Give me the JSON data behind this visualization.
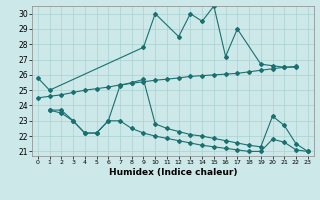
{
  "xlabel": "Humidex (Indice chaleur)",
  "bg_color": "#cce8e8",
  "grid_color": "#aad0d0",
  "line_color": "#1a7070",
  "xlim": [
    -0.5,
    23.5
  ],
  "ylim": [
    20.7,
    30.5
  ],
  "yticks": [
    21,
    22,
    23,
    24,
    25,
    26,
    27,
    28,
    29,
    30
  ],
  "xticks": [
    0,
    1,
    2,
    3,
    4,
    5,
    6,
    7,
    8,
    9,
    10,
    11,
    12,
    13,
    14,
    15,
    16,
    17,
    18,
    19,
    20,
    21,
    22,
    23
  ],
  "series": [
    {
      "x": [
        0,
        1,
        9,
        10,
        12,
        13,
        14,
        15,
        16,
        17,
        19,
        20,
        21,
        22
      ],
      "y": [
        25.8,
        25.0,
        27.8,
        30.0,
        28.5,
        30.0,
        29.5,
        30.5,
        27.2,
        29.0,
        26.7,
        26.6,
        26.5,
        26.5
      ]
    },
    {
      "x": [
        0,
        1,
        2,
        3,
        4,
        5,
        6,
        7,
        8,
        9,
        10,
        11,
        12,
        13,
        14,
        15,
        16,
        17,
        18,
        19,
        20,
        21,
        22
      ],
      "y": [
        24.5,
        24.6,
        24.7,
        24.85,
        25.0,
        25.1,
        25.2,
        25.35,
        25.45,
        25.55,
        25.65,
        25.72,
        25.8,
        25.9,
        25.95,
        26.0,
        26.05,
        26.1,
        26.2,
        26.3,
        26.4,
        26.5,
        26.55
      ]
    },
    {
      "x": [
        1,
        2,
        3,
        4,
        5,
        6,
        7,
        8,
        9,
        10,
        11,
        12,
        13,
        14,
        15,
        16,
        17,
        18,
        19,
        20,
        21,
        22,
        23
      ],
      "y": [
        23.7,
        23.7,
        23.0,
        22.2,
        22.2,
        23.0,
        25.3,
        25.5,
        25.7,
        22.8,
        22.5,
        22.3,
        22.1,
        22.0,
        21.85,
        21.7,
        21.55,
        21.4,
        21.3,
        23.3,
        22.7,
        21.5,
        21.0
      ]
    },
    {
      "x": [
        1,
        2,
        3,
        4,
        5,
        6,
        7,
        8,
        9,
        10,
        11,
        12,
        13,
        14,
        15,
        16,
        17,
        18,
        19,
        20,
        21,
        22,
        23
      ],
      "y": [
        23.7,
        23.5,
        23.0,
        22.2,
        22.2,
        23.0,
        23.0,
        22.5,
        22.2,
        22.0,
        21.85,
        21.7,
        21.55,
        21.4,
        21.3,
        21.2,
        21.1,
        21.0,
        21.0,
        21.8,
        21.6,
        21.1,
        21.0
      ]
    }
  ]
}
